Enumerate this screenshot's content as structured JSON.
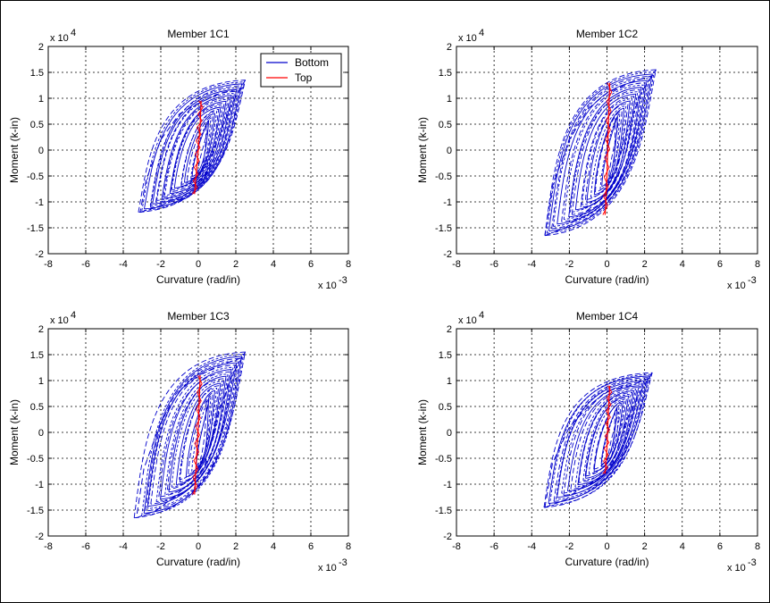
{
  "figure": {
    "background": "#ffffff",
    "border_color": "#000000"
  },
  "chart_data": [
    {
      "type": "line",
      "title": "Member 1C1",
      "xlabel": "Curvature (rad/in)",
      "ylabel": "Moment (k-in)",
      "x_multiplier": "x 10",
      "x_exponent": "-3",
      "y_multiplier": "x 10",
      "y_exponent": "4",
      "xlim": [
        -8,
        8
      ],
      "ylim": [
        -2,
        2
      ],
      "xticks": [
        -8,
        -6,
        -4,
        -2,
        0,
        2,
        4,
        6,
        8
      ],
      "yticks": [
        -2,
        -1.5,
        -1,
        -0.5,
        0,
        0.5,
        1,
        1.5,
        2
      ],
      "xtick_labels": [
        "-8",
        "-6",
        "-4",
        "-2",
        "0",
        "2",
        "4",
        "6",
        "8"
      ],
      "ytick_labels": [
        "-2",
        "-1.5",
        "-1",
        "-0.5",
        "0",
        "0.5",
        "1",
        "1.5",
        "2"
      ],
      "grid": true,
      "legend": {
        "position": "top-right",
        "entries": [
          "Bottom",
          "Top"
        ]
      },
      "series": [
        {
          "name": "Bottom",
          "color": "#0000cc",
          "style": "dashed-hysteresis",
          "x": [
            -3.1,
            -2.2,
            -1.5,
            -0.5,
            0.3,
            1.0,
            1.8,
            2.5,
            2.4,
            1.2,
            0.0,
            -1.0,
            -2.0,
            -2.8,
            -3.1
          ],
          "y": [
            -1.2,
            -1.1,
            -1.0,
            -0.9,
            -0.6,
            0.2,
            0.9,
            1.35,
            1.2,
            1.1,
            0.9,
            0.7,
            0.2,
            -0.6,
            -1.2
          ]
        },
        {
          "name": "Top",
          "color": "#ff0000",
          "style": "solid",
          "x": [
            -0.2,
            -0.1,
            0.0,
            0.1,
            0.15
          ],
          "y": [
            -0.85,
            -0.4,
            0.0,
            0.5,
            0.95
          ]
        }
      ]
    },
    {
      "type": "line",
      "title": "Member 1C2",
      "xlabel": "Curvature (rad/in)",
      "ylabel": "Moment (k-in)",
      "x_multiplier": "x 10",
      "x_exponent": "-3",
      "y_multiplier": "x 10",
      "y_exponent": "4",
      "xlim": [
        -8,
        8
      ],
      "ylim": [
        -2,
        2
      ],
      "xticks": [
        -8,
        -6,
        -4,
        -2,
        0,
        2,
        4,
        6,
        8
      ],
      "yticks": [
        -2,
        -1.5,
        -1,
        -0.5,
        0,
        0.5,
        1,
        1.5,
        2
      ],
      "xtick_labels": [
        "-8",
        "-6",
        "-4",
        "-2",
        "0",
        "2",
        "4",
        "6",
        "8"
      ],
      "ytick_labels": [
        "-2",
        "-1.5",
        "-1",
        "-0.5",
        "0",
        "0.5",
        "1",
        "1.5",
        "2"
      ],
      "grid": true,
      "series": [
        {
          "name": "Bottom",
          "color": "#0000cc",
          "style": "dashed-hysteresis",
          "x": [
            -3.3,
            -2.2,
            -1.5,
            -0.5,
            0.3,
            1.0,
            1.8,
            2.6,
            2.5,
            1.2,
            0.0,
            -1.0,
            -2.0,
            -2.9,
            -3.3
          ],
          "y": [
            -1.65,
            -1.5,
            -1.3,
            -1.0,
            -0.7,
            0.3,
            1.1,
            1.55,
            1.45,
            1.3,
            1.1,
            0.8,
            0.2,
            -0.7,
            -1.65
          ]
        },
        {
          "name": "Top",
          "color": "#ff0000",
          "style": "solid",
          "x": [
            -0.1,
            0.0,
            0.05,
            0.1,
            0.15
          ],
          "y": [
            -1.25,
            -0.5,
            0.2,
            0.8,
            1.3
          ]
        }
      ]
    },
    {
      "type": "line",
      "title": "Member 1C3",
      "xlabel": "Curvature (rad/in)",
      "ylabel": "Moment (k-in)",
      "x_multiplier": "x 10",
      "x_exponent": "-3",
      "y_multiplier": "x 10",
      "y_exponent": "4",
      "xlim": [
        -8,
        8
      ],
      "ylim": [
        -2,
        2
      ],
      "xticks": [
        -8,
        -6,
        -4,
        -2,
        0,
        2,
        4,
        6,
        8
      ],
      "yticks": [
        -2,
        -1.5,
        -1,
        -0.5,
        0,
        0.5,
        1,
        1.5,
        2
      ],
      "xtick_labels": [
        "-8",
        "-6",
        "-4",
        "-2",
        "0",
        "2",
        "4",
        "6",
        "8"
      ],
      "ytick_labels": [
        "-2",
        "-1.5",
        "-1",
        "-0.5",
        "0",
        "0.5",
        "1",
        "1.5",
        "2"
      ],
      "grid": true,
      "series": [
        {
          "name": "Bottom",
          "color": "#0000cc",
          "style": "dashed-hysteresis",
          "x": [
            -3.3,
            -2.2,
            -1.5,
            -0.5,
            0.3,
            1.0,
            1.8,
            2.5,
            2.4,
            1.2,
            0.0,
            -1.0,
            -2.0,
            -2.9,
            -3.3
          ],
          "y": [
            -1.65,
            -1.5,
            -1.3,
            -1.0,
            -0.7,
            0.3,
            1.1,
            1.55,
            1.45,
            1.3,
            1.1,
            0.8,
            0.2,
            -0.7,
            -1.65
          ]
        },
        {
          "name": "Top",
          "color": "#ff0000",
          "style": "solid",
          "x": [
            -0.2,
            -0.1,
            0.0,
            0.05,
            0.1
          ],
          "y": [
            -1.2,
            -0.5,
            0.1,
            0.6,
            1.1
          ]
        }
      ]
    },
    {
      "type": "line",
      "title": "Member 1C4",
      "xlabel": "Curvature (rad/in)",
      "ylabel": "Moment (k-in)",
      "x_multiplier": "x 10",
      "x_exponent": "-3",
      "y_multiplier": "x 10",
      "y_exponent": "4",
      "xlim": [
        -8,
        8
      ],
      "ylim": [
        -2,
        2
      ],
      "xticks": [
        -8,
        -6,
        -4,
        -2,
        0,
        2,
        4,
        6,
        8
      ],
      "yticks": [
        -2,
        -1.5,
        -1,
        -0.5,
        0,
        0.5,
        1,
        1.5,
        2
      ],
      "xtick_labels": [
        "-8",
        "-6",
        "-4",
        "-2",
        "0",
        "2",
        "4",
        "6",
        "8"
      ],
      "ytick_labels": [
        "-2",
        "-1.5",
        "-1",
        "-0.5",
        "0",
        "0.5",
        "1",
        "1.5",
        "2"
      ],
      "grid": true,
      "series": [
        {
          "name": "Bottom",
          "color": "#0000cc",
          "style": "dashed-hysteresis",
          "x": [
            -3.3,
            -2.2,
            -1.5,
            -0.5,
            0.3,
            1.0,
            1.8,
            2.4,
            2.3,
            1.2,
            0.0,
            -1.0,
            -2.0,
            -2.9,
            -3.3
          ],
          "y": [
            -1.45,
            -1.3,
            -1.1,
            -0.9,
            -0.6,
            0.2,
            0.8,
            1.15,
            1.05,
            0.9,
            0.8,
            0.5,
            0.1,
            -0.6,
            -1.45
          ]
        },
        {
          "name": "Top",
          "color": "#ff0000",
          "style": "solid",
          "x": [
            -0.1,
            0.0,
            0.05,
            0.1,
            0.15
          ],
          "y": [
            -0.8,
            -0.3,
            0.2,
            0.6,
            0.9
          ]
        }
      ]
    }
  ]
}
